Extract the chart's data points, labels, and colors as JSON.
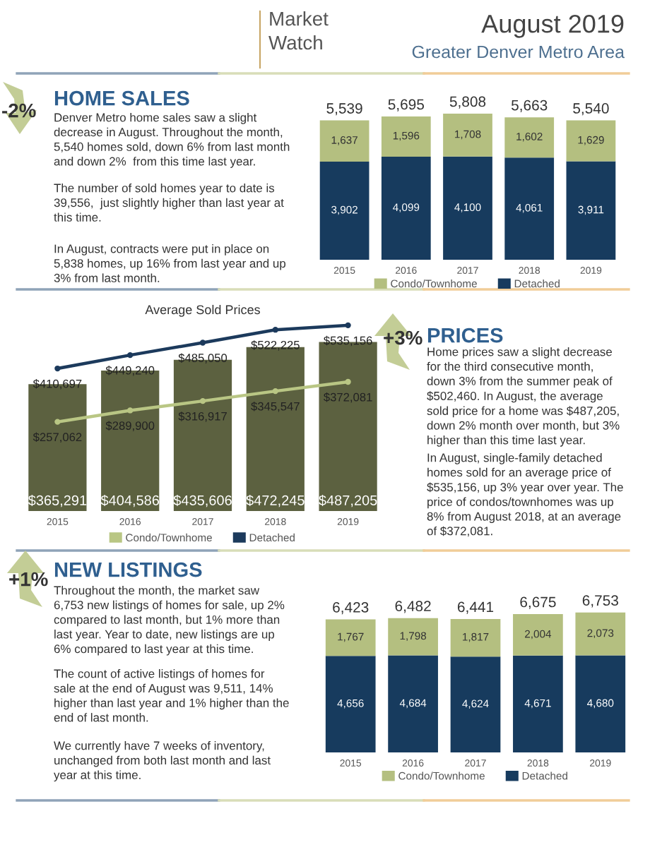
{
  "chart_data": [
    {
      "type": "other",
      "title": "August 2019",
      "subtitle": "Greater Denver Metro Area",
      "annotations": [
        "Market\nWatch"
      ]
    },
    {
      "type": "other",
      "title": "HOME SALES",
      "annotations": [
        "-2%",
        "Denver Metro home sales saw a slight\ndecrease in August. Throughout the month,\n5,540 homes sold, down 6% from last month\nand down 2%  from this time last year.",
        "The number of sold homes year to date is\n39,556,  just slightly higher than last year at\nthis time.",
        "In August, contracts were put in place on\n5,838 homes, up 16% from last year and up\n3% from last month."
      ]
    },
    {
      "type": "bar",
      "stacked": true,
      "categories": [
        "2015",
        "2016",
        "2017",
        "2018",
        "2019"
      ],
      "series": [
        {
          "name": "Detached",
          "color": "#173b5e",
          "values": [
            3902,
            4099,
            4100,
            4061,
            3911
          ],
          "value_labels": [
            "3,902",
            "4,099",
            "4,100",
            "4,061",
            "3,911"
          ]
        },
        {
          "name": "Condo/Townhome",
          "color": "#b4bf80",
          "values": [
            1637,
            1596,
            1708,
            1602,
            1629
          ],
          "value_labels": [
            "1,637",
            "1,596",
            "1,708",
            "1,602",
            "1,629"
          ]
        }
      ],
      "totals": [
        "5,539",
        "5,695",
        "5,808",
        "5,663",
        "5,540"
      ],
      "tick_labels": "x",
      "legend": "bottom",
      "grid": false
    },
    {
      "type": "bar",
      "title": "Average Sold Prices",
      "categories": [
        "2015",
        "2016",
        "2017",
        "2018",
        "2019"
      ],
      "series": [
        {
          "color": "#5c6140",
          "values": [
            365291,
            404586,
            435606,
            472245,
            487205
          ],
          "value_labels": [
            "$365,291",
            "$404,586",
            "$435,606",
            "$472,245",
            "$487,205"
          ]
        },
        {
          "type": "line",
          "name": "Condo/Townhome",
          "color": "#b9c684",
          "values": [
            257062,
            289900,
            316917,
            345547,
            372081
          ],
          "value_labels": [
            "$257,062",
            "$289,900",
            "$316,917",
            "$345,547",
            "$372,081"
          ]
        },
        {
          "type": "line",
          "name": "Detached",
          "color": "#1c3a5c",
          "values": [
            410697,
            449240,
            485050,
            522225,
            535156
          ],
          "value_labels": [
            "$410,697",
            "$449,240",
            "$485,050",
            "$522,225",
            "$535,156"
          ]
        }
      ],
      "tick_labels": "x",
      "legend": "bottom",
      "marker": "circle",
      "grid": false
    },
    {
      "type": "other",
      "title": "PRICES",
      "annotations": [
        "+3%",
        "Home prices saw a slight decrease\nfor the third consecutive month,\ndown 3% from the summer peak of\n$502,460. In August, the average\nsold price for a home was $487,205,\ndown 2% month over month, but 3%\nhigher than this time last year.",
        "In August, single-family detached\nhomes sold for an average price of\n$535,156, up 3% year over year. The\nprice of condos/townhomes was up\n8% from August 2018, at an average\nof $372,081."
      ]
    },
    {
      "type": "other",
      "title": "NEW LISTINGS",
      "annotations": [
        "+1%",
        "Throughout the month, the market saw\n6,753 new listings of homes for sale, up 2%\ncompared to last month, but 1% more than\nlast year. Year to date, new listings are up\n6% compared to last year at this time.",
        "The count of active listings of homes for\nsale at the end of August was 9,511, 14%\nhigher than last year and 1% higher than the\nend of last month.",
        "We currently have 7 weeks of inventory,\nunchanged from both last month and last\nyear at this time."
      ]
    },
    {
      "type": "bar",
      "stacked": true,
      "categories": [
        "2015",
        "2016",
        "2017",
        "2018",
        "2019"
      ],
      "series": [
        {
          "name": "Detached",
          "color": "#173b5e",
          "values": [
            4656,
            4684,
            4624,
            4671,
            4680
          ],
          "value_labels": [
            "4,656",
            "4,684",
            "4,624",
            "4,671",
            "4,680"
          ]
        },
        {
          "name": "Condo/Townhome",
          "color": "#b4bf80",
          "values": [
            1767,
            1798,
            1817,
            2004,
            2073
          ],
          "value_labels": [
            "1,767",
            "1,798",
            "1,817",
            "2,004",
            "2,073"
          ]
        }
      ],
      "totals": [
        "6,423",
        "6,482",
        "6,441",
        "6,675",
        "6,753"
      ],
      "tick_labels": "x",
      "legend": "bottom",
      "grid": false
    }
  ]
}
